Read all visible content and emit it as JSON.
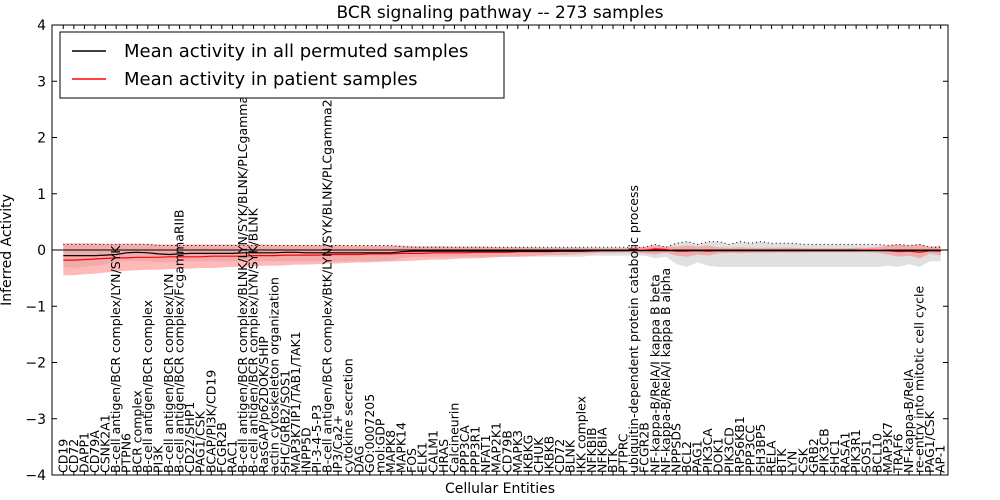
{
  "chart_data": {
    "type": "line",
    "title": "BCR signaling pathway -- 273 samples",
    "xlabel": "Cellular Entities",
    "ylabel": "Inferred Activity",
    "ylim": [
      -4,
      4
    ],
    "yticks": [
      -4,
      -3,
      -2,
      -1,
      0,
      1,
      2,
      3,
      4
    ],
    "ytick_labels": [
      "−4",
      "−3",
      "−2",
      "−1",
      "0",
      "1",
      "2",
      "3",
      "4"
    ],
    "legend_position": "top-left",
    "grid": false,
    "reference_line": 0,
    "categories": [
      "CD19",
      "CD72",
      "DAPP1",
      "CD79A",
      "CSNK2A1",
      "B-cell antigen/BCR complex/LYN/SYK",
      "PTPN6",
      "BCR complex",
      "B-cell antigen/BCR complex",
      "PI3K",
      "B-cell antigen/BCR complex/LYN",
      "B-cell antigen/BCR complex/FcgammaRIIB",
      "CD22/SHP1",
      "PAG1/CSK",
      "BCAP/PI3K/CD19",
      "FCGR2B",
      "RAC1",
      "B-cell antigen/BCR complex/BLNK/LYN/SYK/BLNK/PLCgamma2",
      "B-cell antigen/BCR complex/LYN/SYK/BLNK",
      "RasGAP/p62DOK/SHIP",
      "actin cytoskeleton organization",
      "SHC/GRB2/SOS1",
      "MAP3K7IP1/TAB1/TAK1",
      "INPP5D",
      "PI-3-4-5-P3",
      "B-cell antigen/BCR complex/BtK/LYN/SYK/BLNK/PLCgamma2",
      "IP3/Ca2+",
      "cytokine secretion",
      "DAG",
      "GO:0007205",
      "mol:GDP",
      "MAPK8",
      "MAPK14",
      "FOS",
      "ELK1",
      "CALM1",
      "HRAS",
      "Calcineurin",
      "PPP3CA",
      "PPP3R1",
      "NFAT1",
      "MAP2K1",
      "CD79B",
      "MAPK3",
      "IKBKG",
      "CHUK",
      "IKBKB",
      "CD72",
      "BLNK",
      "IKK complex",
      "NFKBIB",
      "NFKBIA",
      "BTK",
      "PTPRC",
      "ubiquitin-dependent protein catabolic process",
      "FCGR2B",
      "NF-kappa-B/RelA/I kappa B beta",
      "NF-kappa-B/RelA/I kappa B alpha",
      "NPPSDS",
      "BCL2",
      "PAG1",
      "PIK3CA",
      "DOK1",
      "PIK3CD",
      "RPS6KB1",
      "PPP3CC",
      "SH3BP5",
      "RELA",
      "BTK",
      "LYN",
      "CSK",
      "GRB2",
      "PIK3CB",
      "SHC1",
      "RASA1",
      "PIK3R1",
      "SOS1",
      "BCL10",
      "MAP3K7",
      "TRAF6",
      "NF-kappa-B/RelA",
      "re-entry into mitotic cell cycle",
      "PAG1/CSK",
      "AP-1"
    ],
    "series": [
      {
        "name": "Mean activity in all permuted samples",
        "color": "#000000",
        "values": [
          -0.1,
          -0.1,
          -0.1,
          -0.1,
          -0.09,
          -0.08,
          -0.05,
          -0.04,
          -0.05,
          -0.07,
          -0.08,
          -0.07,
          -0.06,
          -0.06,
          -0.06,
          -0.06,
          -0.06,
          -0.05,
          -0.05,
          -0.05,
          -0.05,
          -0.04,
          -0.04,
          -0.05,
          -0.05,
          -0.05,
          -0.05,
          -0.05,
          -0.05,
          -0.05,
          -0.05,
          -0.05,
          -0.03,
          -0.02,
          -0.02,
          -0.02,
          -0.02,
          -0.02,
          -0.02,
          -0.02,
          -0.02,
          -0.02,
          -0.02,
          -0.02,
          -0.02,
          -0.02,
          -0.02,
          -0.02,
          -0.02,
          -0.02,
          -0.01,
          -0.01,
          -0.01,
          -0.01,
          -0.01,
          -0.01,
          -0.01,
          -0.01,
          -0.01,
          -0.01,
          -0.01,
          -0.01,
          -0.01,
          -0.01,
          -0.01,
          -0.01,
          -0.01,
          -0.01,
          -0.01,
          -0.01,
          -0.01,
          -0.01,
          -0.01,
          -0.01,
          -0.01,
          -0.01,
          -0.01,
          -0.01,
          -0.01,
          -0.01,
          -0.01,
          -0.01,
          -0.01,
          -0.01
        ],
        "band_low": [
          -0.3,
          -0.32,
          -0.3,
          -0.28,
          -0.25,
          -0.22,
          -0.2,
          -0.2,
          -0.2,
          -0.22,
          -0.22,
          -0.2,
          -0.2,
          -0.2,
          -0.2,
          -0.2,
          -0.2,
          -0.2,
          -0.2,
          -0.2,
          -0.2,
          -0.2,
          -0.2,
          -0.2,
          -0.2,
          -0.2,
          -0.2,
          -0.2,
          -0.2,
          -0.2,
          -0.2,
          -0.2,
          -0.15,
          -0.12,
          -0.12,
          -0.12,
          -0.12,
          -0.12,
          -0.12,
          -0.12,
          -0.12,
          -0.12,
          -0.12,
          -0.12,
          -0.12,
          -0.12,
          -0.12,
          -0.12,
          -0.12,
          -0.12,
          -0.1,
          -0.1,
          -0.1,
          -0.1,
          -0.1,
          -0.1,
          -0.15,
          -0.12,
          -0.25,
          -0.3,
          -0.22,
          -0.28,
          -0.3,
          -0.3,
          -0.3,
          -0.3,
          -0.3,
          -0.3,
          -0.3,
          -0.3,
          -0.3,
          -0.3,
          -0.3,
          -0.3,
          -0.3,
          -0.3,
          -0.3,
          -0.3,
          -0.28,
          -0.3,
          -0.25,
          -0.3,
          -0.2,
          -0.2
        ],
        "band_high": [
          0.1,
          0.1,
          0.1,
          0.1,
          0.1,
          0.1,
          0.1,
          0.1,
          0.1,
          0.08,
          0.08,
          0.08,
          0.08,
          0.08,
          0.08,
          0.08,
          0.08,
          0.08,
          0.08,
          0.08,
          0.08,
          0.08,
          0.08,
          0.08,
          0.08,
          0.08,
          0.08,
          0.08,
          0.08,
          0.08,
          0.08,
          0.08,
          0.06,
          0.05,
          0.05,
          0.05,
          0.05,
          0.05,
          0.05,
          0.05,
          0.05,
          0.05,
          0.05,
          0.05,
          0.05,
          0.05,
          0.05,
          0.05,
          0.05,
          0.05,
          0.05,
          0.05,
          0.05,
          0.05,
          0.05,
          0.05,
          0.1,
          0.05,
          0.12,
          0.15,
          0.1,
          0.15,
          0.15,
          0.1,
          0.15,
          0.12,
          0.15,
          0.12,
          0.12,
          0.12,
          0.1,
          0.1,
          0.1,
          0.1,
          0.1,
          0.1,
          0.1,
          0.1,
          0.08,
          0.1,
          0.08,
          0.1,
          0.05,
          0.05
        ],
        "band_color": "#cccccc"
      },
      {
        "name": "Mean activity in patient samples",
        "color": "#ff0000",
        "values": [
          -0.18,
          -0.18,
          -0.17,
          -0.16,
          -0.15,
          -0.14,
          -0.14,
          -0.13,
          -0.13,
          -0.13,
          -0.12,
          -0.12,
          -0.12,
          -0.12,
          -0.11,
          -0.11,
          -0.11,
          -0.11,
          -0.1,
          -0.1,
          -0.1,
          -0.09,
          -0.09,
          -0.09,
          -0.09,
          -0.08,
          -0.08,
          -0.08,
          -0.08,
          -0.07,
          -0.07,
          -0.07,
          -0.06,
          -0.06,
          -0.06,
          -0.05,
          -0.05,
          -0.05,
          -0.05,
          -0.04,
          -0.04,
          -0.04,
          -0.04,
          -0.03,
          -0.03,
          -0.03,
          -0.03,
          -0.02,
          -0.02,
          -0.02,
          -0.02,
          -0.01,
          -0.01,
          -0.01,
          0.0,
          0.0,
          0.02,
          0.01,
          -0.02,
          -0.02,
          -0.01,
          -0.02,
          -0.01,
          -0.01,
          -0.01,
          -0.01,
          -0.01,
          -0.01,
          -0.01,
          -0.01,
          -0.01,
          -0.01,
          -0.01,
          -0.01,
          -0.01,
          -0.01,
          0.0,
          0.0,
          -0.01,
          -0.03,
          -0.02,
          -0.04,
          -0.01,
          -0.02
        ],
        "band_low": [
          -0.45,
          -0.45,
          -0.43,
          -0.42,
          -0.4,
          -0.38,
          -0.37,
          -0.36,
          -0.35,
          -0.35,
          -0.34,
          -0.33,
          -0.33,
          -0.32,
          -0.32,
          -0.31,
          -0.3,
          -0.3,
          -0.29,
          -0.28,
          -0.28,
          -0.27,
          -0.26,
          -0.26,
          -0.25,
          -0.24,
          -0.24,
          -0.23,
          -0.22,
          -0.22,
          -0.21,
          -0.2,
          -0.2,
          -0.19,
          -0.18,
          -0.17,
          -0.17,
          -0.16,
          -0.15,
          -0.15,
          -0.14,
          -0.13,
          -0.12,
          -0.12,
          -0.11,
          -0.1,
          -0.09,
          -0.09,
          -0.08,
          -0.07,
          -0.06,
          -0.05,
          -0.05,
          -0.04,
          -0.05,
          -0.06,
          -0.08,
          -0.05,
          -0.1,
          -0.12,
          -0.08,
          -0.1,
          -0.06,
          -0.05,
          -0.06,
          -0.05,
          -0.05,
          -0.05,
          -0.04,
          -0.05,
          -0.04,
          -0.04,
          -0.04,
          -0.04,
          -0.04,
          -0.04,
          -0.04,
          -0.05,
          -0.08,
          -0.12,
          -0.1,
          -0.15,
          -0.06,
          -0.1
        ],
        "band_high": [
          0.12,
          0.12,
          0.12,
          0.12,
          0.11,
          0.11,
          0.11,
          0.11,
          0.11,
          0.1,
          0.1,
          0.1,
          0.1,
          0.1,
          0.1,
          0.1,
          0.1,
          0.1,
          0.1,
          0.1,
          0.09,
          0.09,
          0.09,
          0.09,
          0.09,
          0.09,
          0.09,
          0.08,
          0.08,
          0.08,
          0.08,
          0.08,
          0.08,
          0.07,
          0.07,
          0.07,
          0.07,
          0.06,
          0.06,
          0.06,
          0.06,
          0.05,
          0.05,
          0.05,
          0.05,
          0.04,
          0.04,
          0.04,
          0.04,
          0.04,
          0.03,
          0.03,
          0.03,
          0.03,
          0.05,
          0.06,
          0.08,
          0.06,
          0.06,
          0.08,
          0.06,
          0.08,
          0.05,
          0.04,
          0.05,
          0.04,
          0.04,
          0.04,
          0.04,
          0.04,
          0.03,
          0.03,
          0.03,
          0.03,
          0.03,
          0.04,
          0.04,
          0.05,
          0.08,
          0.1,
          0.08,
          0.1,
          0.06,
          0.08
        ],
        "band_color": "#ff8080"
      }
    ]
  }
}
